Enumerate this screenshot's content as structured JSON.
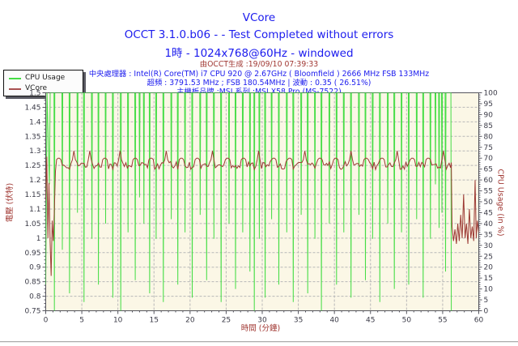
{
  "header": {
    "title": "VCore",
    "subtitle": "OCCT 3.1.0.b06 -  - Test Completed without errors",
    "resolution_line": "1時 - 1024x768@60Hz - windowed",
    "generated": "由OCCT生成 :19/09/10 07:39:33",
    "cpu_info": "中央處理器 : Intel(R) Core(TM) i7 CPU 920 @ 2.67GHz ( Bloomfield ) 2666 MHz FSB 133MHz",
    "overclock_info": "超頻 : 3791.53 MHz ; FSB 180.54MHz | 波動 : 0.35 ( 26.51%)",
    "motherboard_info": "主機板品牌 :MSI,系列 :MSI X58 Pro (MS-7522)"
  },
  "colors": {
    "blue_text": "#1b1bee",
    "dark_red_text": "#a03732",
    "cpu_usage_line": "#45dd45",
    "vcore_line": "#9c3a34",
    "plot_bg": "#fbf7e6",
    "grid": "#b8b8b8",
    "frame": "#55555e",
    "tick_label": "#3b3b47"
  },
  "legend": {
    "items": [
      {
        "label": "CPU Usage",
        "color": "#45dd45"
      },
      {
        "label": "VCore",
        "color": "#a85050"
      }
    ]
  },
  "chart_data": {
    "type": "line",
    "title": "VCore",
    "grid": "dashed",
    "legend_position": "top-left",
    "x_axis": {
      "label": "時間 (分鐘)",
      "min": 0,
      "max": 60,
      "tick_step": 5,
      "minor_step": 1
    },
    "y_left": {
      "label": "電壓 (伏特)",
      "min": 0.75,
      "max": 1.5,
      "tick_step": 0.05,
      "minor_step": 0.0125
    },
    "y_right": {
      "label": "CPU Usage (in %)",
      "min": 0,
      "max": 100,
      "tick_step": 5,
      "minor_step": 1
    },
    "series": [
      {
        "name": "CPU Usage",
        "axis": "right",
        "color": "#45dd45",
        "baseline": 100,
        "start_ramp": [
          [
            0,
            12
          ],
          [
            0.18,
            100
          ],
          [
            0.5,
            58
          ],
          [
            0.62,
            100
          ]
        ],
        "dips": [
          [
            1.2,
            0
          ],
          [
            2.3,
            28
          ],
          [
            3.3,
            8
          ],
          [
            4.4,
            45
          ],
          [
            5.3,
            4
          ],
          [
            6.4,
            33
          ],
          [
            7.3,
            12
          ],
          [
            8.3,
            40
          ],
          [
            9.3,
            6
          ],
          [
            10.4,
            0
          ],
          [
            11.4,
            36
          ],
          [
            12.4,
            14
          ],
          [
            13.0,
            52
          ],
          [
            13.6,
            40
          ],
          [
            14.4,
            8
          ],
          [
            15.3,
            33
          ],
          [
            16.3,
            4
          ],
          [
            17.4,
            42
          ],
          [
            18.3,
            12
          ],
          [
            19.3,
            36
          ],
          [
            20.3,
            6
          ],
          [
            21.4,
            44
          ],
          [
            22.3,
            14
          ],
          [
            23.3,
            33
          ],
          [
            24.3,
            4
          ],
          [
            25.4,
            40
          ],
          [
            26.3,
            10
          ],
          [
            27.3,
            36
          ],
          [
            28.3,
            18
          ],
          [
            28.9,
            0
          ],
          [
            29.6,
            33
          ],
          [
            30.4,
            6
          ],
          [
            31.3,
            42
          ],
          [
            32.3,
            12
          ],
          [
            33.4,
            36
          ],
          [
            34.3,
            4
          ],
          [
            35.4,
            44
          ],
          [
            36.3,
            8
          ],
          [
            37.3,
            33
          ],
          [
            38.2,
            0
          ],
          [
            39.3,
            40
          ],
          [
            40.3,
            12
          ],
          [
            41.3,
            36
          ],
          [
            42.3,
            6
          ],
          [
            43.4,
            44
          ],
          [
            44.3,
            14
          ],
          [
            45.3,
            33
          ],
          [
            46.3,
            4
          ],
          [
            47.4,
            40
          ],
          [
            48.3,
            10
          ],
          [
            49.3,
            36
          ],
          [
            50.3,
            12
          ],
          [
            51.4,
            42
          ],
          [
            52.3,
            6
          ],
          [
            53.3,
            33
          ],
          [
            54.0,
            58
          ],
          [
            54.5,
            38
          ],
          [
            54.9,
            45
          ],
          [
            55.4,
            18
          ],
          [
            56.2,
            0
          ]
        ],
        "end_time": 56.2
      },
      {
        "name": "VCore",
        "axis": "left",
        "color": "#9c3a34",
        "start_points": [
          [
            0,
            1.13
          ],
          [
            0.15,
            1.28
          ],
          [
            0.3,
            1.0
          ],
          [
            0.45,
            1.19
          ],
          [
            0.6,
            0.99
          ],
          [
            0.75,
            0.87
          ],
          [
            0.9,
            1.06
          ],
          [
            1.05,
            0.99
          ],
          [
            1.2,
            1.1
          ],
          [
            1.35,
            1.23
          ]
        ],
        "baseline": 1.25,
        "noise": 0.014,
        "spike_value": 1.3,
        "spike_times": [
          1.8,
          3.9,
          6.1,
          8.2,
          10.3,
          12.4,
          14.6,
          16.7,
          18.8,
          21.0,
          23.1,
          25.2,
          27.4,
          29.5,
          31.6,
          33.8,
          35.9,
          38.0,
          40.2,
          42.3,
          44.4,
          46.6,
          48.7,
          50.8,
          53.0,
          55.1
        ],
        "main_end": 56.15,
        "end_points": [
          [
            56.2,
            1.26
          ],
          [
            56.3,
            1.04
          ],
          [
            56.5,
            0.99
          ],
          [
            56.7,
            1.03
          ],
          [
            56.9,
            0.98
          ],
          [
            57.1,
            1.05
          ],
          [
            57.3,
            0.99
          ],
          [
            57.5,
            1.08
          ],
          [
            57.7,
            1.0
          ],
          [
            57.9,
            1.15
          ],
          [
            58.1,
            1.0
          ],
          [
            58.3,
            1.05
          ],
          [
            58.5,
            0.98
          ],
          [
            58.7,
            1.1
          ],
          [
            58.9,
            1.0
          ],
          [
            59.1,
            1.04
          ],
          [
            59.3,
            0.99
          ],
          [
            59.5,
            1.2
          ],
          [
            59.65,
            1.0
          ],
          [
            59.8,
            1.06
          ],
          [
            60,
            1.02
          ]
        ]
      }
    ]
  }
}
